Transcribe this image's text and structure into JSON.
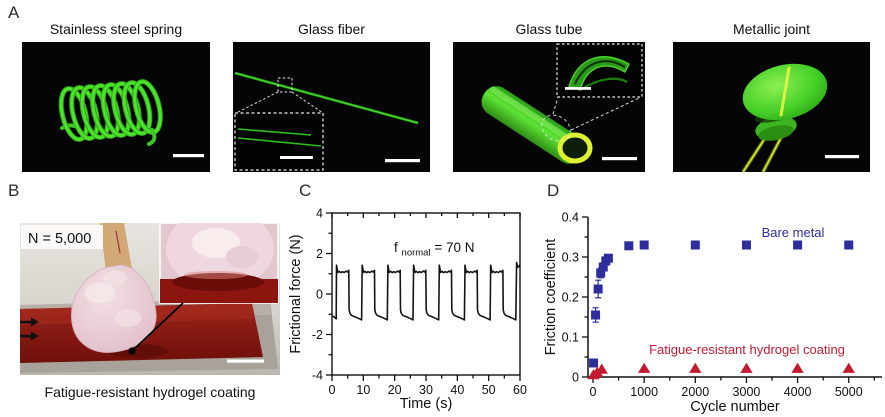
{
  "figure": {
    "panels": {
      "A": {
        "label": "A",
        "items": [
          {
            "title": "Stainless steel spring",
            "kind": "fluorescence micrograph",
            "has_scale_bar": true
          },
          {
            "title": "Glass fiber",
            "kind": "fluorescence micrograph",
            "has_inset": true,
            "has_scale_bar": true
          },
          {
            "title": "Glass tube",
            "kind": "fluorescence micrograph",
            "has_inset": true,
            "has_scale_bar": true
          },
          {
            "title": "Metallic joint",
            "kind": "fluorescence micrograph",
            "has_scale_bar": true
          }
        ]
      },
      "B": {
        "label": "B",
        "overlay_label": "N = 5,000",
        "caption": "Fatigue-resistant hydrogel coating",
        "has_inset": true,
        "has_scale_bar": true
      },
      "C": {
        "label": "C"
      },
      "D": {
        "label": "D"
      }
    }
  },
  "colors": {
    "bare_metal_blue": "#2d2d9b",
    "hydrogel_red": "#c41a31",
    "fluorescent_green": "#46df2a",
    "trace_black": "#141414",
    "hydrogel_pad_red": "#8e1b12"
  },
  "chart_data": [
    {
      "panel": "C",
      "type": "line",
      "xlabel": "Time (s)",
      "ylabel": "Frictional force (N)",
      "xlim": [
        0,
        60
      ],
      "ylim": [
        -4,
        4
      ],
      "xticks": [
        0,
        10,
        20,
        30,
        40,
        50,
        60
      ],
      "yticks": [
        -4,
        -2,
        0,
        2,
        4
      ],
      "x_minor_step": 5,
      "y_minor_step": 1,
      "grid": false,
      "frame": "box",
      "annotation_parts": {
        "base": "f",
        "sub": "normal",
        "rest": " = 70 N"
      },
      "line_color": "#141414",
      "waveform": {
        "description": "cyclic friction trace, ~8.2 s period, plateau ~ +1.1 N, trough ~ -1.25 N",
        "period_s": 8.2,
        "rise_times_s": [
          1.4,
          9.6,
          17.8,
          26.0,
          34.2,
          42.4,
          50.6,
          58.8
        ],
        "pre": [
          [
            0,
            -1.08
          ],
          [
            0.5,
            -1.12
          ],
          [
            1.1,
            -1.18
          ],
          [
            1.35,
            -1.22
          ]
        ],
        "high_shape": [
          [
            0.05,
            1.42
          ],
          [
            0.2,
            1.28
          ],
          [
            0.45,
            1.06
          ],
          [
            0.9,
            1.12
          ],
          [
            1.4,
            1.05
          ],
          [
            1.9,
            1.1
          ],
          [
            2.5,
            1.06
          ],
          [
            3.1,
            1.13
          ],
          [
            3.6,
            1.08
          ],
          [
            3.95,
            1.17
          ]
        ],
        "low_shape": [
          [
            4.05,
            -0.78
          ],
          [
            4.3,
            -0.95
          ],
          [
            4.8,
            -1.05
          ],
          [
            5.5,
            -1.1
          ],
          [
            6.3,
            -1.15
          ],
          [
            7.3,
            -1.22
          ],
          [
            8.05,
            -1.28
          ]
        ],
        "tail": [
          [
            58.9,
            1.55
          ],
          [
            59.3,
            1.32
          ],
          [
            59.7,
            1.38
          ],
          [
            60,
            1.45
          ]
        ]
      }
    },
    {
      "panel": "D",
      "type": "scatter",
      "xlabel": "Cycle number",
      "ylabel": "Friction coefficient",
      "xlim": [
        -98,
        5650
      ],
      "ylim": [
        0,
        0.4
      ],
      "xticks": [
        0,
        1000,
        2000,
        3000,
        4000,
        5000
      ],
      "yticks": [
        0,
        0.1,
        0.2,
        0.3,
        0.4
      ],
      "ytick_labels": [
        "0",
        "0.1",
        "0.2",
        "0.3",
        "0.4"
      ],
      "x_minor_step": 500,
      "y_minor_step": 0.05,
      "grid": false,
      "frame": "open",
      "series": [
        {
          "name": "Bare metal",
          "marker": "square",
          "color": "#2d2d9b",
          "points": [
            [
              10,
              0.035
            ],
            [
              50,
              0.155
            ],
            [
              100,
              0.22
            ],
            [
              150,
              0.26
            ],
            [
              200,
              0.275
            ],
            [
              250,
              0.29
            ],
            [
              300,
              0.297
            ],
            [
              700,
              0.328
            ],
            [
              1000,
              0.33
            ],
            [
              2000,
              0.33
            ],
            [
              3000,
              0.33
            ],
            [
              4000,
              0.33
            ],
            [
              5000,
              0.33
            ]
          ],
          "yerr": [
            0.006,
            0.018,
            0.022,
            0.012,
            0.01,
            0.01,
            0.009,
            0,
            0,
            0,
            0,
            0,
            0
          ]
        },
        {
          "name": "Fatigue-resistant hydrogel coating",
          "marker": "triangle",
          "color": "#c41a31",
          "points": [
            [
              10,
              0.006
            ],
            [
              80,
              0.012
            ],
            [
              170,
              0.02
            ],
            [
              1000,
              0.022
            ],
            [
              2000,
              0.022
            ],
            [
              3000,
              0.022
            ],
            [
              4000,
              0.022
            ],
            [
              5000,
              0.022
            ]
          ],
          "yerr": [
            0,
            0,
            0,
            0,
            0,
            0,
            0,
            0
          ]
        }
      ]
    }
  ]
}
